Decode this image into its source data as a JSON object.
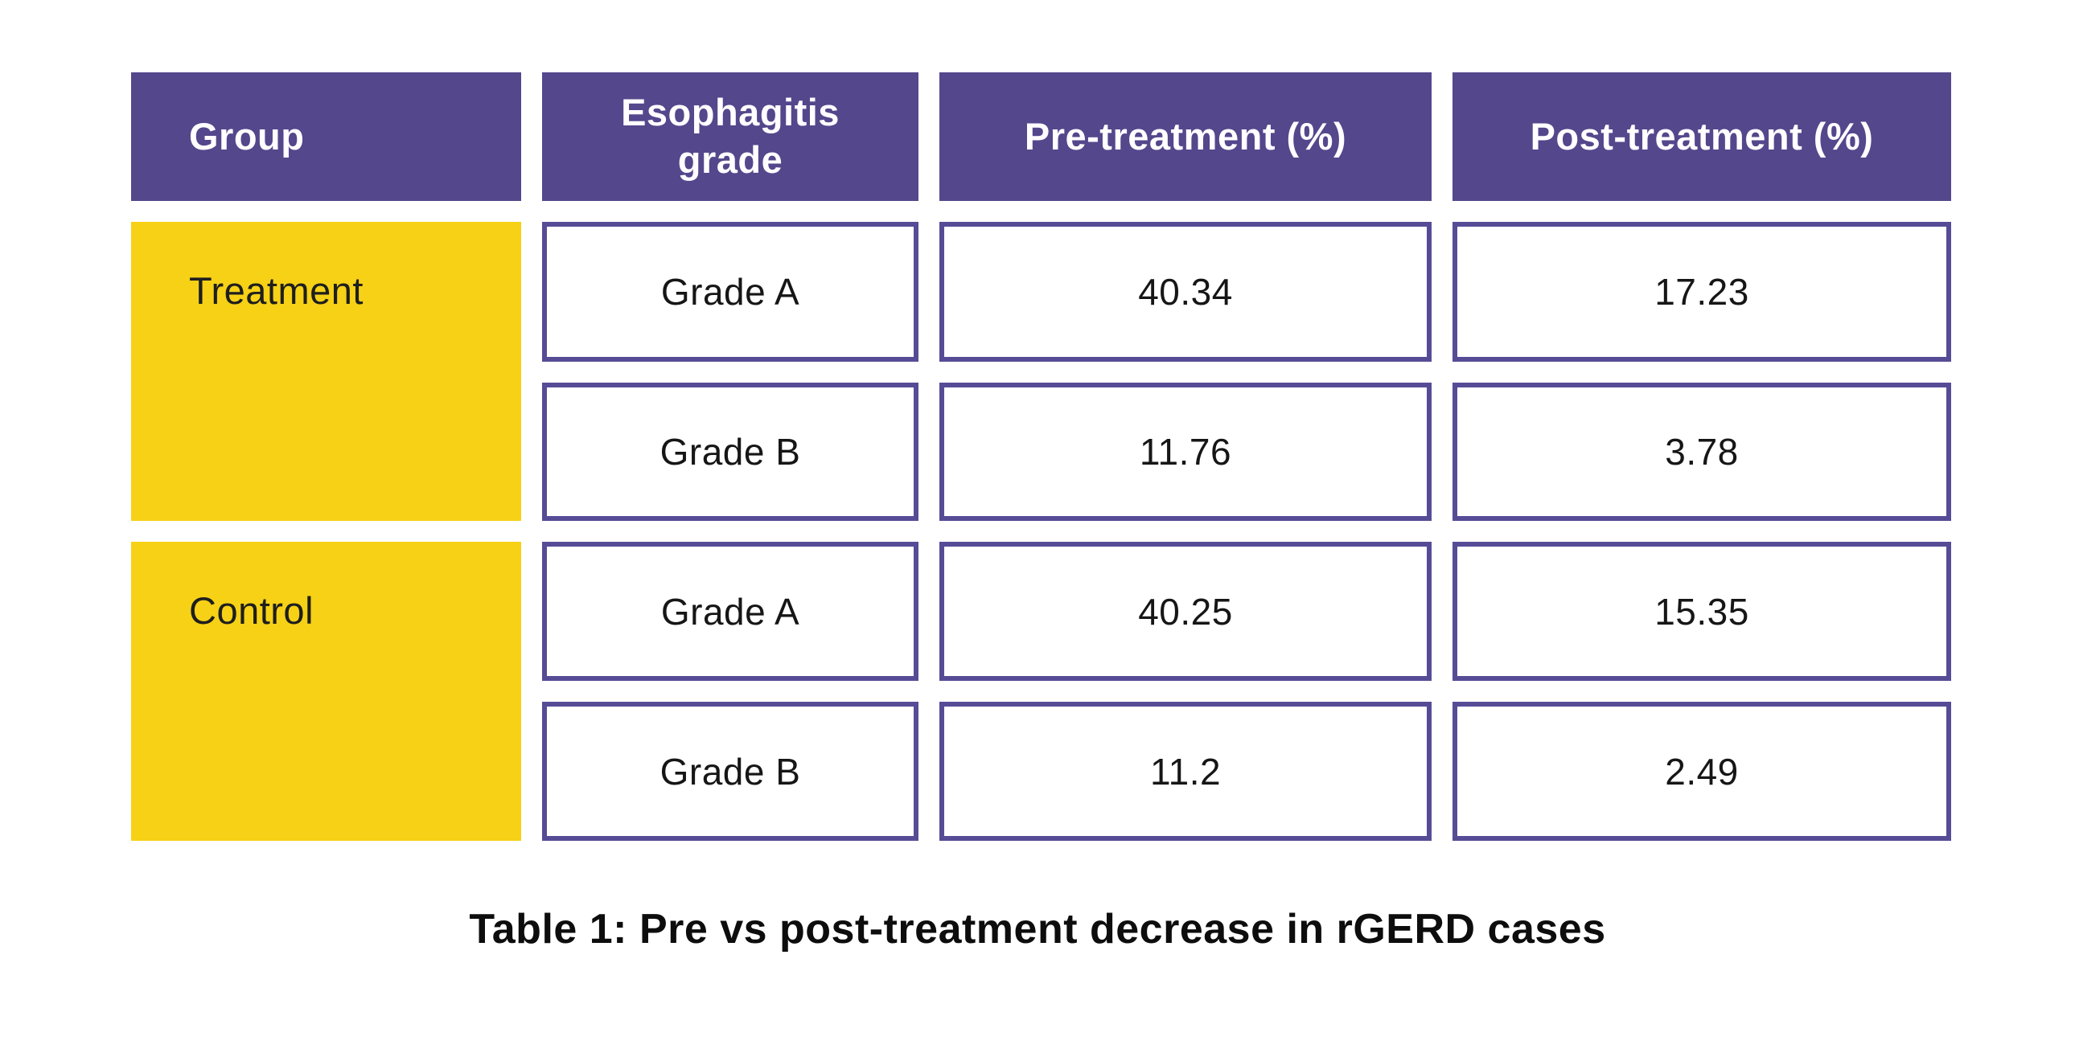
{
  "table": {
    "headers": [
      {
        "label": "Group"
      },
      {
        "label": "Esophagitis\ngrade"
      },
      {
        "label": "Pre-treatment (%)"
      },
      {
        "label": "Post-treatment (%)"
      }
    ],
    "groups": [
      {
        "name": "Treatment",
        "rows": [
          {
            "grade": "Grade A",
            "pre": "40.34",
            "post": "17.23"
          },
          {
            "grade": "Grade B",
            "pre": "11.76",
            "post": "3.78"
          }
        ]
      },
      {
        "name": "Control",
        "rows": [
          {
            "grade": "Grade A",
            "pre": "40.25",
            "post": "15.35"
          },
          {
            "grade": "Grade B",
            "pre": "11.2",
            "post": "2.49"
          }
        ]
      }
    ],
    "caption": "Table 1: Pre vs post-treatment decrease in rGERD cases"
  },
  "colors": {
    "header_background": "#54478C",
    "cell_border": "#564C96",
    "group_background": "#F6D116",
    "header_text": "#FFFFFF",
    "body_text": "#161616",
    "page_background": "#FFFFFF"
  },
  "chart_data": {
    "type": "table",
    "title": "Table 1: Pre vs post-treatment decrease in rGERD cases",
    "columns": [
      "Group",
      "Esophagitis grade",
      "Pre-treatment (%)",
      "Post-treatment (%)"
    ],
    "rows": [
      [
        "Treatment",
        "Grade A",
        40.34,
        17.23
      ],
      [
        "Treatment",
        "Grade B",
        11.76,
        3.78
      ],
      [
        "Control",
        "Grade A",
        40.25,
        15.35
      ],
      [
        "Control",
        "Grade B",
        11.2,
        2.49
      ]
    ]
  }
}
